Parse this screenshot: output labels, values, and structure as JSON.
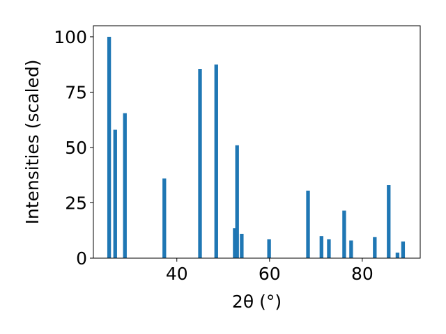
{
  "chart_data": {
    "type": "bar",
    "xlabel": "2θ (°)",
    "ylabel": "Intensities (scaled)",
    "xlim": [
      22,
      92.5
    ],
    "ylim": [
      0,
      105
    ],
    "x_ticks": [
      40,
      60,
      80
    ],
    "y_ticks": [
      0,
      25,
      50,
      75,
      100
    ],
    "grid": false,
    "bar_color": "#1f77b4",
    "bar_width": 0.8,
    "x": [
      25.4,
      26.7,
      28.8,
      37.3,
      45.0,
      48.5,
      52.5,
      53.0,
      54.0,
      59.9,
      68.3,
      71.2,
      72.8,
      76.1,
      77.6,
      82.7,
      85.7,
      87.6,
      88.8
    ],
    "values": [
      100,
      58,
      65.5,
      36,
      85.5,
      87.5,
      13.5,
      51,
      11,
      8.5,
      30.5,
      10,
      8.5,
      21.5,
      8,
      9.5,
      33,
      2.5,
      7.5
    ]
  }
}
